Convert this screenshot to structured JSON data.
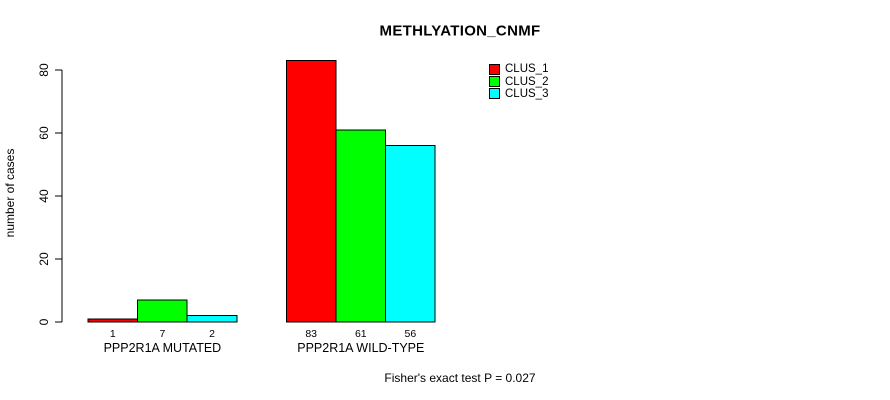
{
  "title": "METHLYATION_CNMF",
  "chart_data": {
    "type": "bar",
    "title": "METHLYATION_CNMF",
    "xlabel": "",
    "ylabel": "number of cases",
    "categories": [
      "PPP2R1A MUTATED",
      "PPP2R1A WILD-TYPE"
    ],
    "series": [
      {
        "name": "CLUS_1",
        "color": "#FF0000",
        "values": [
          1,
          83
        ]
      },
      {
        "name": "CLUS_2",
        "color": "#00FF00",
        "values": [
          7,
          61
        ]
      },
      {
        "name": "CLUS_3",
        "color": "#00FFFF",
        "values": [
          2,
          56
        ]
      }
    ],
    "bar_value_labels": [
      [
        "1",
        "7",
        "2"
      ],
      [
        "83",
        "61",
        "56"
      ]
    ],
    "yticks": [
      "0",
      "20",
      "40",
      "60",
      "80"
    ],
    "ytick_values": [
      0,
      20,
      40,
      60,
      80
    ],
    "ylim": [
      0,
      83
    ],
    "grid": false,
    "legend_position": "top-right",
    "legend_entries": [
      "CLUS_1",
      "CLUS_2",
      "CLUS_3"
    ],
    "bar_border_color": "#000000",
    "annotation": "Fisher's exact test P = 0.027"
  },
  "legend": {
    "items": [
      {
        "label": "CLUS_1",
        "color": "#FF0000"
      },
      {
        "label": "CLUS_2",
        "color": "#00FF00"
      },
      {
        "label": "CLUS_3",
        "color": "#00FFFF"
      }
    ]
  },
  "footer": {
    "text": "Fisher's exact test P = 0.027"
  }
}
